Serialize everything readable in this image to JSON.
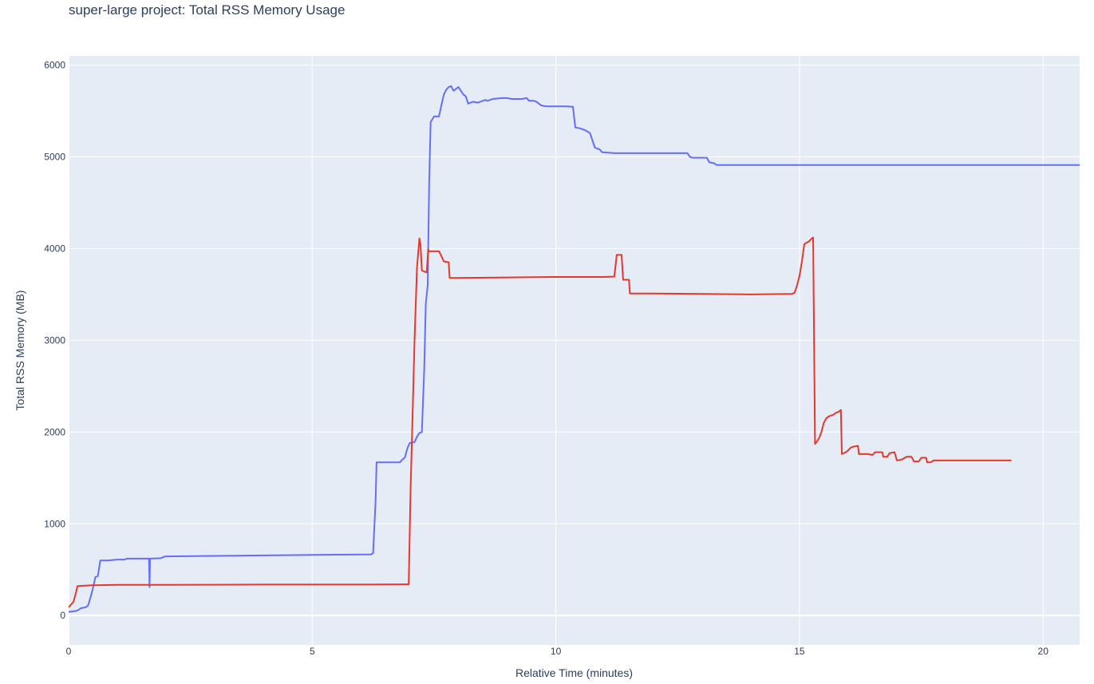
{
  "chart_data": {
    "type": "line",
    "title": "super-large project: Total RSS Memory Usage",
    "xlabel": "Relative Time (minutes)",
    "ylabel": "Total RSS Memory (MB)",
    "xlim": [
      0,
      20.75
    ],
    "ylim": [
      -320,
      6100
    ],
    "x_ticks": [
      0,
      5,
      10,
      15,
      20
    ],
    "y_ticks": [
      0,
      1000,
      2000,
      3000,
      4000,
      5000,
      6000
    ],
    "grid": true,
    "legend": "none",
    "plot_background": "#e5ecf6",
    "series": [
      {
        "color": "#636efa",
        "points": [
          [
            0,
            40
          ],
          [
            0.15,
            50
          ],
          [
            0.2,
            60
          ],
          [
            0.25,
            80
          ],
          [
            0.35,
            90
          ],
          [
            0.4,
            110
          ],
          [
            0.45,
            200
          ],
          [
            0.5,
            300
          ],
          [
            0.55,
            420
          ],
          [
            0.6,
            430
          ],
          [
            0.65,
            600
          ],
          [
            0.8,
            600
          ],
          [
            1.0,
            610
          ],
          [
            1.15,
            610
          ],
          [
            1.2,
            620
          ],
          [
            1.6,
            620
          ],
          [
            1.65,
            620
          ],
          [
            1.66,
            310
          ],
          [
            1.67,
            620
          ],
          [
            1.9,
            625
          ],
          [
            1.95,
            640
          ],
          [
            2.0,
            645
          ],
          [
            3.0,
            650
          ],
          [
            4.0,
            655
          ],
          [
            5.0,
            660
          ],
          [
            6.0,
            665
          ],
          [
            6.2,
            665
          ],
          [
            6.25,
            680
          ],
          [
            6.3,
            1250
          ],
          [
            6.32,
            1670
          ],
          [
            6.4,
            1670
          ],
          [
            6.8,
            1670
          ],
          [
            6.85,
            1700
          ],
          [
            6.9,
            1720
          ],
          [
            6.95,
            1820
          ],
          [
            7.0,
            1880
          ],
          [
            7.1,
            1890
          ],
          [
            7.15,
            1950
          ],
          [
            7.2,
            1990
          ],
          [
            7.25,
            2000
          ],
          [
            7.3,
            2700
          ],
          [
            7.33,
            3400
          ],
          [
            7.37,
            3600
          ],
          [
            7.4,
            4700
          ],
          [
            7.43,
            5380
          ],
          [
            7.5,
            5440
          ],
          [
            7.6,
            5440
          ],
          [
            7.65,
            5560
          ],
          [
            7.7,
            5680
          ],
          [
            7.75,
            5730
          ],
          [
            7.8,
            5760
          ],
          [
            7.85,
            5770
          ],
          [
            7.9,
            5720
          ],
          [
            7.95,
            5740
          ],
          [
            8.0,
            5760
          ],
          [
            8.05,
            5720
          ],
          [
            8.1,
            5680
          ],
          [
            8.15,
            5660
          ],
          [
            8.2,
            5580
          ],
          [
            8.3,
            5600
          ],
          [
            8.4,
            5590
          ],
          [
            8.5,
            5610
          ],
          [
            8.55,
            5620
          ],
          [
            8.6,
            5610
          ],
          [
            8.7,
            5630
          ],
          [
            8.9,
            5640
          ],
          [
            9.0,
            5640
          ],
          [
            9.1,
            5630
          ],
          [
            9.3,
            5630
          ],
          [
            9.4,
            5640
          ],
          [
            9.45,
            5610
          ],
          [
            9.55,
            5610
          ],
          [
            9.6,
            5600
          ],
          [
            9.7,
            5560
          ],
          [
            9.8,
            5550
          ],
          [
            10.0,
            5550
          ],
          [
            10.2,
            5550
          ],
          [
            10.35,
            5545
          ],
          [
            10.4,
            5320
          ],
          [
            10.5,
            5310
          ],
          [
            10.6,
            5290
          ],
          [
            10.7,
            5260
          ],
          [
            10.75,
            5180
          ],
          [
            10.8,
            5100
          ],
          [
            10.9,
            5080
          ],
          [
            10.95,
            5050
          ],
          [
            11.2,
            5040
          ],
          [
            11.5,
            5040
          ],
          [
            12.0,
            5040
          ],
          [
            12.5,
            5040
          ],
          [
            12.7,
            5040
          ],
          [
            12.75,
            5000
          ],
          [
            12.8,
            4990
          ],
          [
            13.1,
            4990
          ],
          [
            13.15,
            4940
          ],
          [
            13.25,
            4930
          ],
          [
            13.3,
            4910
          ],
          [
            14.0,
            4910
          ],
          [
            15.0,
            4910
          ],
          [
            16.0,
            4910
          ],
          [
            18.0,
            4910
          ],
          [
            20.0,
            4910
          ],
          [
            20.75,
            4910
          ]
        ]
      },
      {
        "color": "#e5372a",
        "points": [
          [
            0,
            90
          ],
          [
            0.1,
            150
          ],
          [
            0.15,
            250
          ],
          [
            0.18,
            320
          ],
          [
            0.3,
            325
          ],
          [
            0.5,
            330
          ],
          [
            1.0,
            335
          ],
          [
            2.0,
            335
          ],
          [
            3.0,
            336
          ],
          [
            4.0,
            338
          ],
          [
            5.0,
            338
          ],
          [
            6.0,
            338
          ],
          [
            6.98,
            340
          ],
          [
            7.02,
            1400
          ],
          [
            7.05,
            2000
          ],
          [
            7.1,
            3000
          ],
          [
            7.15,
            3800
          ],
          [
            7.2,
            4110
          ],
          [
            7.22,
            4050
          ],
          [
            7.25,
            3760
          ],
          [
            7.35,
            3740
          ],
          [
            7.38,
            3990
          ],
          [
            7.4,
            3970
          ],
          [
            7.6,
            3970
          ],
          [
            7.65,
            3920
          ],
          [
            7.7,
            3860
          ],
          [
            7.8,
            3850
          ],
          [
            7.82,
            3680
          ],
          [
            8.0,
            3680
          ],
          [
            9.0,
            3685
          ],
          [
            9.9,
            3690
          ],
          [
            10.0,
            3690
          ],
          [
            11.0,
            3690
          ],
          [
            11.2,
            3695
          ],
          [
            11.25,
            3930
          ],
          [
            11.35,
            3930
          ],
          [
            11.38,
            3660
          ],
          [
            11.5,
            3660
          ],
          [
            11.52,
            3510
          ],
          [
            12.0,
            3510
          ],
          [
            13.0,
            3505
          ],
          [
            14.0,
            3500
          ],
          [
            14.85,
            3505
          ],
          [
            14.9,
            3520
          ],
          [
            14.95,
            3600
          ],
          [
            15.0,
            3700
          ],
          [
            15.05,
            3860
          ],
          [
            15.1,
            4050
          ],
          [
            15.2,
            4080
          ],
          [
            15.25,
            4110
          ],
          [
            15.28,
            4120
          ],
          [
            15.32,
            1870
          ],
          [
            15.4,
            1930
          ],
          [
            15.45,
            2000
          ],
          [
            15.5,
            2100
          ],
          [
            15.55,
            2150
          ],
          [
            15.6,
            2170
          ],
          [
            15.7,
            2190
          ],
          [
            15.75,
            2210
          ],
          [
            15.8,
            2220
          ],
          [
            15.85,
            2240
          ],
          [
            15.87,
            1760
          ],
          [
            15.95,
            1780
          ],
          [
            16.0,
            1800
          ],
          [
            16.05,
            1830
          ],
          [
            16.1,
            1840
          ],
          [
            16.2,
            1850
          ],
          [
            16.22,
            1760
          ],
          [
            16.4,
            1760
          ],
          [
            16.5,
            1750
          ],
          [
            16.55,
            1780
          ],
          [
            16.7,
            1780
          ],
          [
            16.72,
            1730
          ],
          [
            16.8,
            1730
          ],
          [
            16.85,
            1770
          ],
          [
            16.95,
            1780
          ],
          [
            17.0,
            1690
          ],
          [
            17.1,
            1700
          ],
          [
            17.2,
            1730
          ],
          [
            17.3,
            1730
          ],
          [
            17.35,
            1680
          ],
          [
            17.45,
            1680
          ],
          [
            17.5,
            1720
          ],
          [
            17.6,
            1720
          ],
          [
            17.62,
            1670
          ],
          [
            17.7,
            1670
          ],
          [
            17.75,
            1690
          ],
          [
            18.0,
            1690
          ],
          [
            18.5,
            1690
          ],
          [
            19.0,
            1690
          ],
          [
            19.35,
            1690
          ]
        ]
      }
    ]
  }
}
